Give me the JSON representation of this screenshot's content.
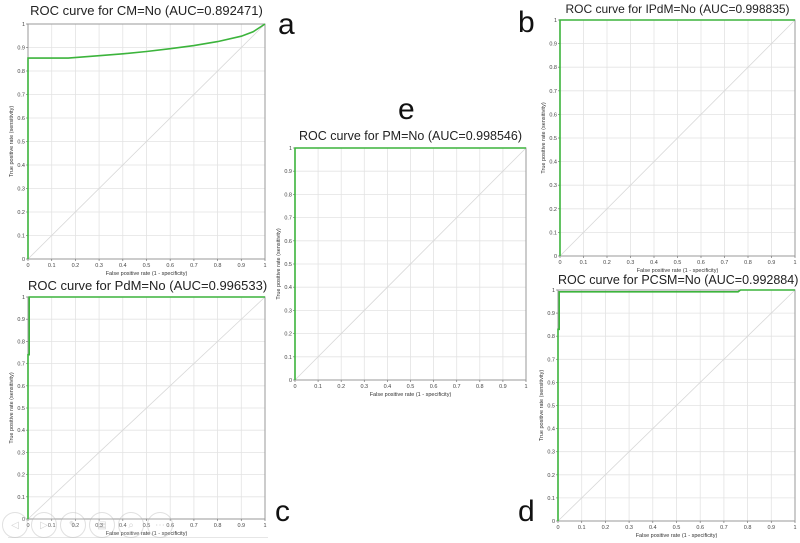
{
  "chart_data": [
    {
      "id": "a",
      "type": "line",
      "title": "ROC curve for CM=No (AUC=0.892471)",
      "xlabel": "False positive rate (1 - specificity)",
      "ylabel": "True positive rate (sensitivity)",
      "xlim": [
        0,
        1
      ],
      "ylim": [
        0,
        1
      ],
      "xticks": [
        "0",
        "0.1",
        "0.2",
        "0.3",
        "0.4",
        "0.5",
        "0.6",
        "0.7",
        "0.8",
        "0.9",
        "1"
      ],
      "yticks": [
        "0",
        "0.1",
        "0.2",
        "0.3",
        "0.4",
        "0.5",
        "0.6",
        "0.7",
        "0.8",
        "0.9",
        "1"
      ],
      "grid": true,
      "series": [
        {
          "name": "ROC",
          "color": "#3cb43c",
          "x": [
            0,
            0,
            0.17,
            0.3,
            0.4,
            0.5,
            0.6,
            0.7,
            0.8,
            0.9,
            0.95,
            1.0
          ],
          "y": [
            0,
            0.855,
            0.855,
            0.865,
            0.873,
            0.883,
            0.895,
            0.908,
            0.925,
            0.948,
            0.967,
            1.0
          ]
        },
        {
          "name": "Diagonal",
          "color": "#d8d8d8",
          "x": [
            0,
            1
          ],
          "y": [
            0,
            1
          ]
        }
      ]
    },
    {
      "id": "b",
      "type": "line",
      "title": "ROC curve for IPdM=No (AUC=0.998835)",
      "xlabel": "False positive rate (1 - specificity)",
      "ylabel": "True positive rate (sensitivity)",
      "xlim": [
        0,
        1
      ],
      "ylim": [
        0,
        1
      ],
      "xticks": [
        "0",
        "0.1",
        "0.2",
        "0.3",
        "0.4",
        "0.5",
        "0.6",
        "0.7",
        "0.8",
        "0.9",
        "1"
      ],
      "yticks": [
        "0",
        "0.1",
        "0.2",
        "0.3",
        "0.4",
        "0.5",
        "0.6",
        "0.7",
        "0.8",
        "0.9",
        "1"
      ],
      "grid": true,
      "series": [
        {
          "name": "ROC",
          "color": "#3cb43c",
          "x": [
            0,
            0,
            1
          ],
          "y": [
            0,
            1,
            1
          ]
        },
        {
          "name": "Diagonal",
          "color": "#d8d8d8",
          "x": [
            0,
            1
          ],
          "y": [
            0,
            1
          ]
        }
      ]
    },
    {
      "id": "c",
      "type": "line",
      "title": "ROC curve for PdM=No (AUC=0.996533)",
      "xlabel": "False positive rate (1 - specificity)",
      "ylabel": "True positive rate (sensitivity)",
      "xlim": [
        0,
        1
      ],
      "ylim": [
        0,
        1
      ],
      "xticks": [
        "0",
        "0.1",
        "0.2",
        "0.3",
        "0.4",
        "0.5",
        "0.6",
        "0.7",
        "0.8",
        "0.9",
        "1"
      ],
      "yticks": [
        "0",
        "0.1",
        "0.2",
        "0.3",
        "0.4",
        "0.5",
        "0.6",
        "0.7",
        "0.8",
        "0.9",
        "1"
      ],
      "grid": true,
      "series": [
        {
          "name": "ROC",
          "color": "#3cb43c",
          "x": [
            0,
            0,
            0.005,
            0.005,
            1
          ],
          "y": [
            0,
            0.74,
            0.74,
            1,
            1
          ]
        },
        {
          "name": "Diagonal",
          "color": "#d8d8d8",
          "x": [
            0,
            1
          ],
          "y": [
            0,
            1
          ]
        }
      ]
    },
    {
      "id": "d",
      "type": "line",
      "title": "ROC curve for PCSM=No (AUC=0.992884)",
      "xlabel": "False positive rate (1 - specificity)",
      "ylabel": "True positive rate (sensitivity)",
      "xlim": [
        0,
        1
      ],
      "ylim": [
        0,
        1
      ],
      "xticks": [
        "0",
        "0.1",
        "0.2",
        "0.3",
        "0.4",
        "0.5",
        "0.6",
        "0.7",
        "0.8",
        "0.9",
        "1"
      ],
      "yticks": [
        "0",
        "0.1",
        "0.2",
        "0.3",
        "0.4",
        "0.5",
        "0.6",
        "0.7",
        "0.8",
        "0.9",
        "1"
      ],
      "grid": true,
      "series": [
        {
          "name": "ROC",
          "color": "#3cb43c",
          "x": [
            0,
            0,
            0.005,
            0.005,
            0.76,
            0.77,
            1
          ],
          "y": [
            0,
            0.83,
            0.83,
            0.992,
            0.992,
            1,
            1
          ]
        },
        {
          "name": "Diagonal",
          "color": "#d8d8d8",
          "x": [
            0,
            1
          ],
          "y": [
            0,
            1
          ]
        }
      ]
    },
    {
      "id": "e",
      "type": "line",
      "title": "ROC curve for PM=No (AUC=0.998546)",
      "xlabel": "False positive rate (1 - specificity)",
      "ylabel": "True positive rate (sensitivity)",
      "xlim": [
        0,
        1
      ],
      "ylim": [
        0,
        1
      ],
      "xticks": [
        "0",
        "0.1",
        "0.2",
        "0.3",
        "0.4",
        "0.5",
        "0.6",
        "0.7",
        "0.8",
        "0.9",
        "1"
      ],
      "yticks": [
        "0",
        "0.1",
        "0.2",
        "0.3",
        "0.4",
        "0.5",
        "0.6",
        "0.7",
        "0.8",
        "0.9",
        "1"
      ],
      "grid": true,
      "series": [
        {
          "name": "ROC",
          "color": "#3cb43c",
          "x": [
            0,
            0,
            1
          ],
          "y": [
            0,
            1,
            1
          ]
        },
        {
          "name": "Diagonal",
          "color": "#d8d8d8",
          "x": [
            0,
            1
          ],
          "y": [
            0,
            1
          ]
        }
      ]
    }
  ],
  "panels": {
    "a": {
      "letter": "a",
      "title": "ROC curve for CM=No (AUC=0.892471)"
    },
    "b": {
      "letter": "b",
      "title": "ROC curve for IPdM=No (AUC=0.998835)"
    },
    "c": {
      "letter": "c",
      "title": "ROC curve for PdM=No (AUC=0.996533)"
    },
    "d": {
      "letter": "d",
      "title": "ROC curve for PCSM=No (AUC=0.992884)"
    },
    "e": {
      "letter": "e",
      "title": "ROC curve for PM=No (AUC=0.998546)"
    }
  },
  "overlay_toolbar": {
    "icons": [
      "previous-icon",
      "next-icon",
      "pen-icon",
      "slides-icon",
      "zoom-icon",
      "more-icon"
    ],
    "glyphs": [
      "◁",
      "▷",
      "✎",
      "▤",
      "⌕",
      "⋯"
    ]
  }
}
